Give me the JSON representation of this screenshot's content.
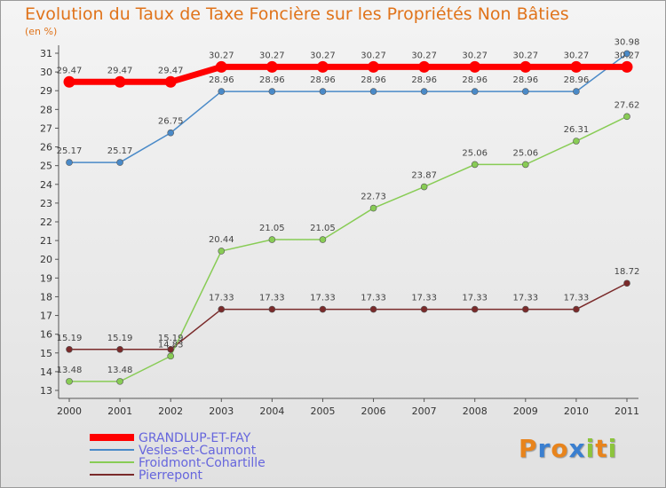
{
  "title": "Evolution du Taux de Taxe Foncière sur les Propriétés Non Bâties",
  "unit": "(en %)",
  "logo": "Proxiti",
  "chart_data": {
    "type": "line",
    "x": [
      "2000",
      "2001",
      "2002",
      "2003",
      "2004",
      "2005",
      "2006",
      "2007",
      "2008",
      "2009",
      "2010",
      "2011"
    ],
    "ylim": [
      13,
      31
    ],
    "yticks": [
      "13",
      "14",
      "15",
      "16",
      "17",
      "18",
      "19",
      "20",
      "21",
      "22",
      "23",
      "24",
      "25",
      "26",
      "27",
      "28",
      "29",
      "30",
      "31"
    ],
    "grid": false,
    "series": [
      {
        "name": "GRANDLUP-ET-FAY",
        "color": "#ff0000",
        "values": [
          29.47,
          29.47,
          29.47,
          30.27,
          30.27,
          30.27,
          30.27,
          30.27,
          30.27,
          30.27,
          30.27,
          30.27
        ],
        "labels": [
          "29.47",
          "29.47",
          "29.47",
          "30.27",
          "30.27",
          "30.27",
          "30.27",
          "30.27",
          "30.27",
          "30.27",
          "30.27",
          "30.27"
        ]
      },
      {
        "name": "Vesles-et-Caumont",
        "color": "#4a8ac8",
        "values": [
          25.17,
          25.17,
          26.75,
          28.96,
          28.96,
          28.96,
          28.96,
          28.96,
          28.96,
          28.96,
          28.96,
          30.98
        ],
        "labels": [
          "25.17",
          "25.17",
          "26.75",
          "28.96",
          "28.96",
          "28.96",
          "28.96",
          "28.96",
          "28.96",
          "28.96",
          "28.96",
          "30.98"
        ]
      },
      {
        "name": "Froidmont-Cohartille",
        "color": "#88cc55",
        "values": [
          13.48,
          13.48,
          14.83,
          20.44,
          21.05,
          21.05,
          22.73,
          23.87,
          25.06,
          25.06,
          26.31,
          27.62
        ],
        "labels": [
          "13.48",
          "13.48",
          "14.83",
          "20.44",
          "21.05",
          "21.05",
          "22.73",
          "23.87",
          "25.06",
          "25.06",
          "26.31",
          "27.62"
        ]
      },
      {
        "name": "Pierrepont",
        "color": "#7a2a2a",
        "values": [
          15.19,
          15.19,
          15.19,
          17.33,
          17.33,
          17.33,
          17.33,
          17.33,
          17.33,
          17.33,
          17.33,
          18.72
        ],
        "labels": [
          "15.19",
          "15.19",
          "15.19",
          "17.33",
          "17.33",
          "17.33",
          "17.33",
          "17.33",
          "17.33",
          "17.33",
          "17.33",
          "18.72"
        ]
      }
    ]
  }
}
